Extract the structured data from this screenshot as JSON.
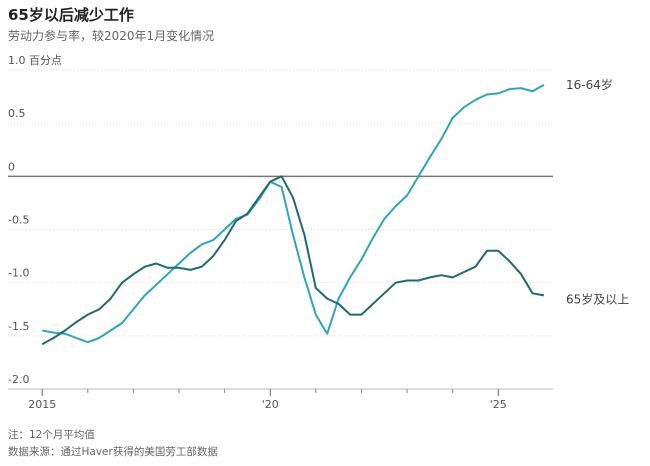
{
  "chart_data": {
    "type": "line",
    "title": "65岁以后减少工作",
    "subtitle": "劳动力参与率，较2020年1月变化情况",
    "note": "注：12个月平均值",
    "source": "数据来源：通过Haver获得的美国劳工部数据",
    "x": [
      2015,
      2015.25,
      2015.5,
      2015.75,
      2016,
      2016.25,
      2016.5,
      2016.75,
      2017,
      2017.25,
      2017.5,
      2017.75,
      2018,
      2018.25,
      2018.5,
      2018.75,
      2019,
      2019.25,
      2019.5,
      2019.75,
      2020,
      2020.25,
      2020.5,
      2020.75,
      2021,
      2021.25,
      2021.5,
      2021.75,
      2022,
      2022.25,
      2022.5,
      2022.75,
      2023,
      2023.25,
      2023.5,
      2023.75,
      2024,
      2024.25,
      2024.5,
      2024.75,
      2025,
      2025.25,
      2025.5,
      2025.75,
      2026
    ],
    "series": [
      {
        "name": "16-64岁",
        "color": "#2ba6bf",
        "values": [
          -1.45,
          -1.47,
          -1.48,
          -1.52,
          -1.56,
          -1.52,
          -1.45,
          -1.38,
          -1.25,
          -1.12,
          -1.02,
          -0.92,
          -0.82,
          -0.72,
          -0.64,
          -0.6,
          -0.5,
          -0.4,
          -0.36,
          -0.22,
          -0.05,
          -0.1,
          -0.55,
          -0.95,
          -1.3,
          -1.48,
          -1.15,
          -0.95,
          -0.78,
          -0.58,
          -0.4,
          -0.28,
          -0.18,
          0,
          0.18,
          0.35,
          0.55,
          0.65,
          0.72,
          0.77,
          0.78,
          0.82,
          0.83,
          0.8,
          0.86
        ]
      },
      {
        "name": "65岁及以上",
        "color": "#1d6b72",
        "values": [
          -1.58,
          -1.52,
          -1.45,
          -1.37,
          -1.3,
          -1.25,
          -1.15,
          -1.0,
          -0.92,
          -0.85,
          -0.82,
          -0.86,
          -0.86,
          -0.88,
          -0.85,
          -0.75,
          -0.6,
          -0.42,
          -0.35,
          -0.2,
          -0.05,
          0.0,
          -0.2,
          -0.55,
          -1.05,
          -1.15,
          -1.2,
          -1.3,
          -1.3,
          -1.2,
          -1.1,
          -1.0,
          -0.98,
          -0.98,
          -0.95,
          -0.93,
          -0.95,
          -0.9,
          -0.85,
          -0.7,
          -0.7,
          -0.8,
          -0.92,
          -1.1,
          -1.12
        ]
      }
    ],
    "xlim": [
      2014.25,
      2026.2
    ],
    "xticks": [
      2015,
      {
        "value": 2020,
        "label": "'20"
      },
      {
        "value": 2025,
        "label": "'25"
      }
    ],
    "minor_xticks": [
      2016,
      2017,
      2018,
      2019,
      2021,
      2022,
      2023,
      2024
    ],
    "ylim": [
      -2,
      1
    ],
    "yticks": [
      {
        "value": 1,
        "label": "1.0 百分点"
      },
      0.5,
      0,
      -0.5,
      {
        "value": -1,
        "label": "-1.0"
      },
      -1.5,
      {
        "value": -2,
        "label": "-2.0"
      }
    ],
    "grid": true
  }
}
